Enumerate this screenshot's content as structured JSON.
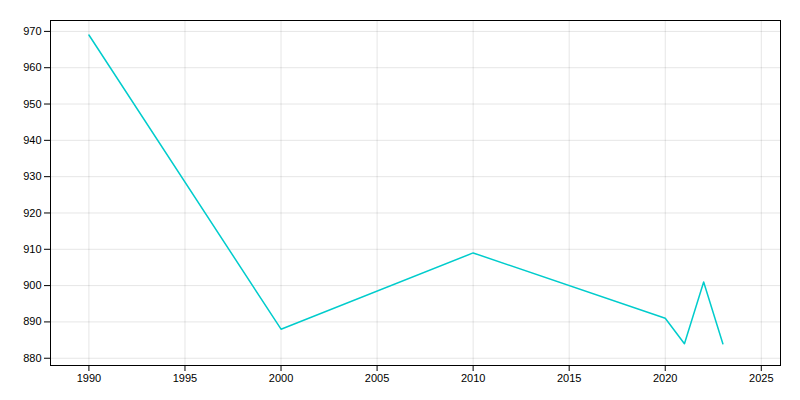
{
  "chart_data": {
    "type": "line",
    "x": [
      1990,
      2000,
      2010,
      2020,
      2021,
      2022,
      2023
    ],
    "values": [
      969,
      888,
      909,
      891,
      884,
      901,
      884
    ],
    "color": "#00CCCC",
    "xlim": [
      1988,
      2026
    ],
    "ylim": [
      878,
      973
    ],
    "xticks": [
      1990,
      1995,
      2000,
      2005,
      2010,
      2015,
      2020,
      2025
    ],
    "yticks": [
      880,
      890,
      900,
      910,
      920,
      930,
      940,
      950,
      960,
      970
    ],
    "grid": true
  }
}
